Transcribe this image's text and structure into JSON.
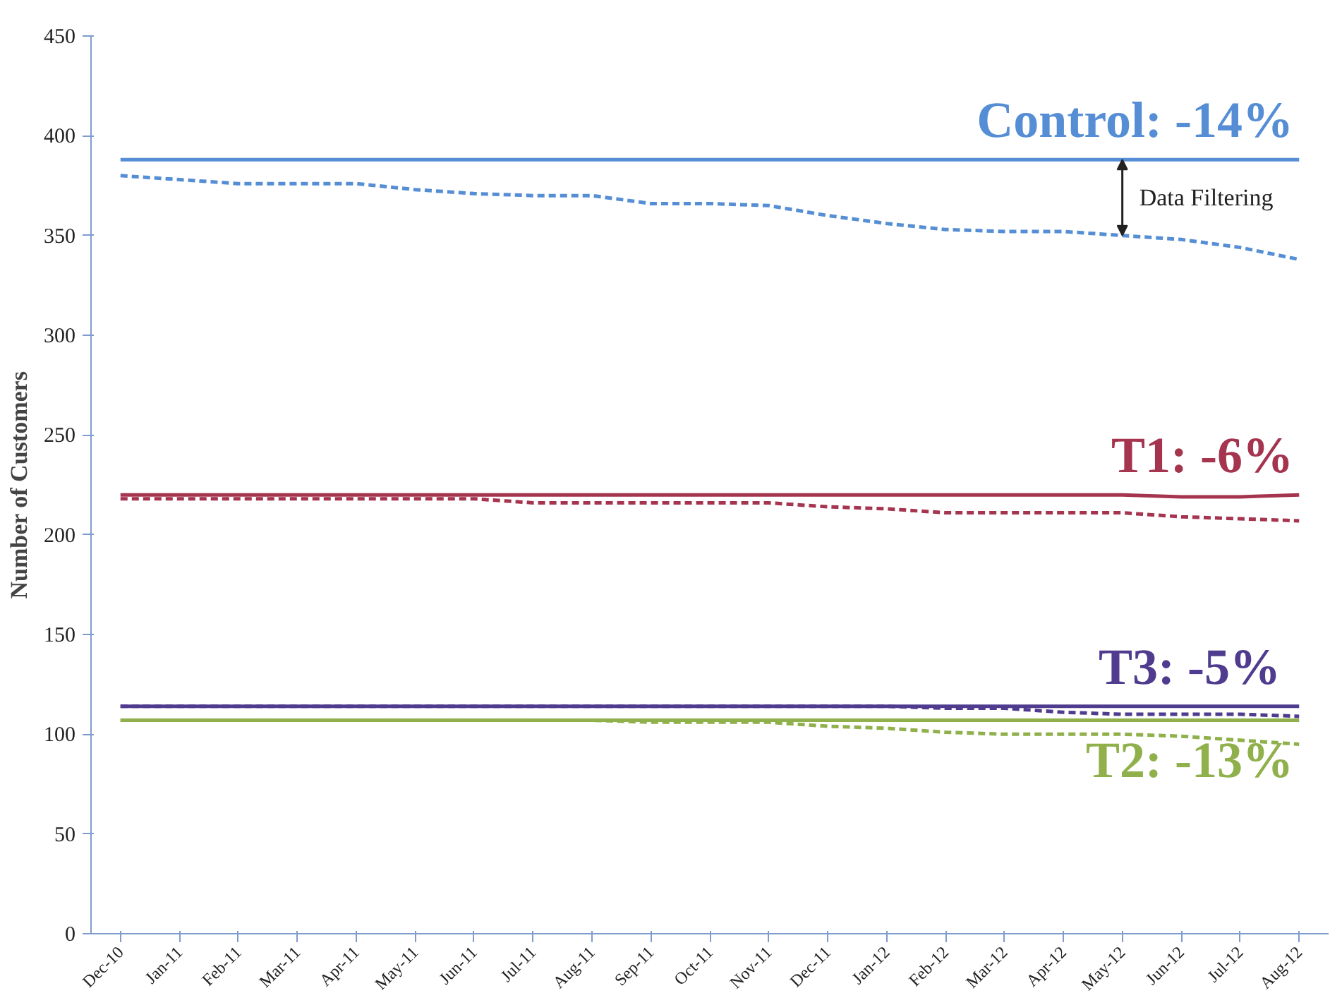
{
  "chart_data": {
    "type": "line",
    "ylabel": "Number of Customers",
    "categories": [
      "Dec-10",
      "Jan-11",
      "Feb-11",
      "Mar-11",
      "Apr-11",
      "May-11",
      "Jun-11",
      "Jul-11",
      "Aug-11",
      "Sep-11",
      "Oct-11",
      "Nov-11",
      "Dec-11",
      "Jan-12",
      "Feb-12",
      "Mar-12",
      "Apr-12",
      "May-12",
      "Jun-12",
      "Jul-12",
      "Aug-12"
    ],
    "ylim": [
      0,
      450
    ],
    "yticks": [
      0,
      50,
      100,
      150,
      200,
      250,
      300,
      350,
      400,
      450
    ],
    "grid": false,
    "marker": "none",
    "series": [
      {
        "name": "Control: -14%",
        "color": "#558ed5",
        "line_style": "solid",
        "values": [
          388,
          388,
          388,
          388,
          388,
          388,
          388,
          388,
          388,
          388,
          388,
          388,
          388,
          388,
          388,
          388,
          388,
          388,
          388,
          388,
          388
        ]
      },
      {
        "color": "#558ed5",
        "line_style": "dashed",
        "values": [
          380,
          378,
          376,
          376,
          376,
          373,
          371,
          370,
          370,
          366,
          366,
          365,
          360,
          356,
          353,
          352,
          352,
          350,
          348,
          344,
          338
        ]
      },
      {
        "name": "T1: -6%",
        "color": "#a5344f",
        "line_style": "solid",
        "values": [
          220,
          220,
          220,
          220,
          220,
          220,
          220,
          220,
          220,
          220,
          220,
          220,
          220,
          220,
          220,
          220,
          220,
          220,
          219,
          219,
          220
        ]
      },
      {
        "color": "#a5344f",
        "line_style": "dashed",
        "values": [
          218,
          218,
          218,
          218,
          218,
          218,
          218,
          216,
          216,
          216,
          216,
          216,
          214,
          213,
          211,
          211,
          211,
          211,
          209,
          208,
          207
        ]
      },
      {
        "name": "T3:  -5%",
        "color": "#4f3c8f",
        "line_style": "solid",
        "values": [
          114,
          114,
          114,
          114,
          114,
          114,
          114,
          114,
          114,
          114,
          114,
          114,
          114,
          114,
          114,
          114,
          114,
          114,
          114,
          114,
          114
        ]
      },
      {
        "color": "#4f3c8f",
        "line_style": "dashed",
        "values": [
          114,
          114,
          114,
          114,
          114,
          114,
          114,
          114,
          114,
          114,
          114,
          114,
          114,
          114,
          113,
          113,
          111,
          110,
          110,
          110,
          109
        ]
      },
      {
        "name": "T2: -13%",
        "color": "#8fb04a",
        "line_style": "solid",
        "values": [
          107,
          107,
          107,
          107,
          107,
          107,
          107,
          107,
          107,
          107,
          107,
          107,
          107,
          107,
          107,
          107,
          107,
          107,
          107,
          107,
          107
        ]
      },
      {
        "color": "#8fb04a",
        "line_style": "dashed",
        "values": [
          107,
          107,
          107,
          107,
          107,
          107,
          107,
          107,
          107,
          106,
          106,
          106,
          104,
          103,
          101,
          100,
          100,
          100,
          99,
          97,
          95
        ]
      }
    ],
    "annotations": [
      "Data Filtering"
    ]
  }
}
